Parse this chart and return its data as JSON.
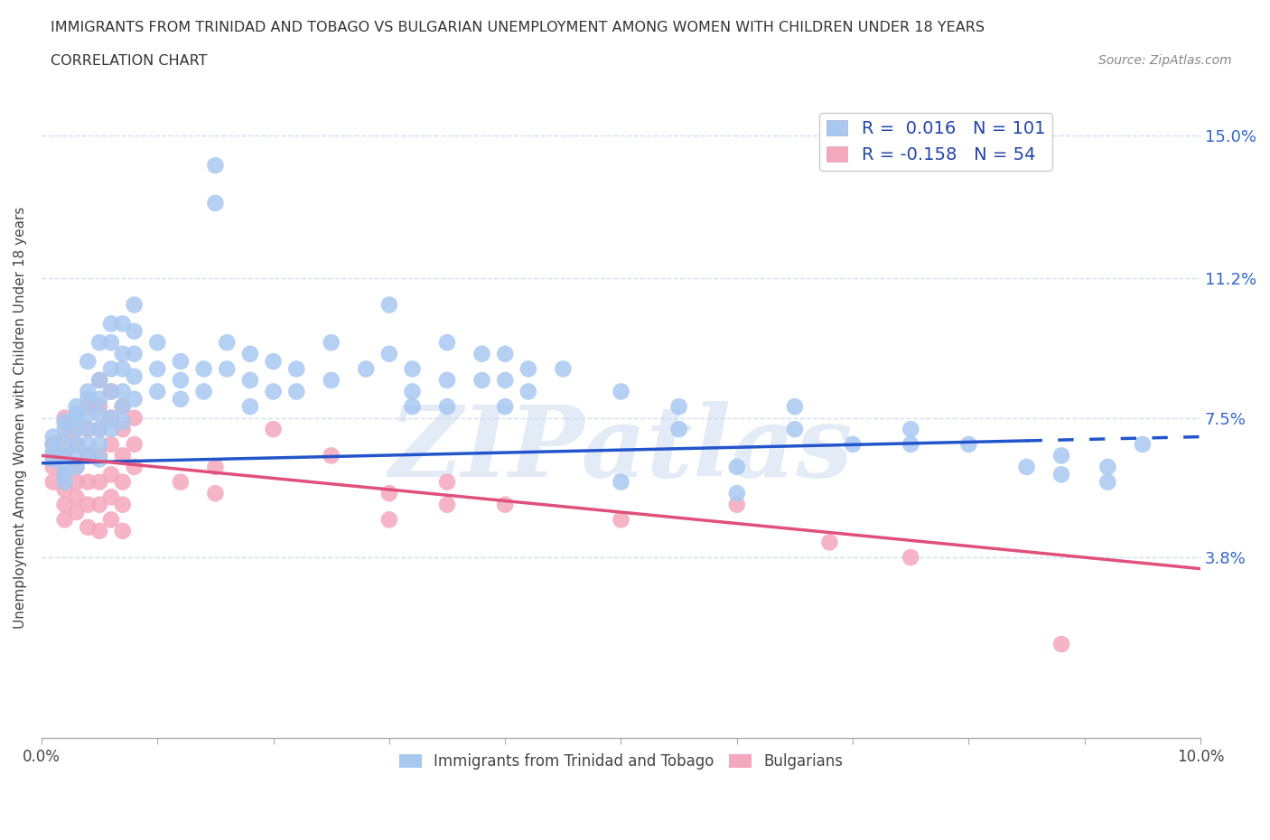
{
  "title_line1": "IMMIGRANTS FROM TRINIDAD AND TOBAGO VS BULGARIAN UNEMPLOYMENT AMONG WOMEN WITH CHILDREN UNDER 18 YEARS",
  "title_line2": "CORRELATION CHART",
  "source_text": "Source: ZipAtlas.com",
  "ylabel": "Unemployment Among Women with Children Under 18 years",
  "xlim": [
    0.0,
    0.1
  ],
  "ylim": [
    -0.01,
    0.16
  ],
  "yticks": [
    0.038,
    0.075,
    0.112,
    0.15
  ],
  "ytick_labels": [
    "3.8%",
    "7.5%",
    "11.2%",
    "15.0%"
  ],
  "blue_color": "#a8c8f0",
  "pink_color": "#f4a8be",
  "blue_line_color": "#2255cc",
  "pink_line_color": "#e0507a",
  "grid_color": "#d0dff0",
  "R_blue": 0.016,
  "N_blue": 101,
  "R_pink": -0.158,
  "N_pink": 54,
  "watermark": "ZIPatlas",
  "legend_label_blue": "Immigrants from Trinidad and Tobago",
  "legend_label_pink": "Bulgarians",
  "blue_trend": [
    0.063,
    0.07
  ],
  "pink_trend": [
    0.065,
    0.035
  ],
  "blue_scatter": [
    [
      0.001,
      0.068
    ],
    [
      0.001,
      0.064
    ],
    [
      0.001,
      0.07
    ],
    [
      0.001,
      0.066
    ],
    [
      0.002,
      0.072
    ],
    [
      0.002,
      0.068
    ],
    [
      0.002,
      0.065
    ],
    [
      0.002,
      0.062
    ],
    [
      0.002,
      0.06
    ],
    [
      0.002,
      0.058
    ],
    [
      0.002,
      0.074
    ],
    [
      0.003,
      0.076
    ],
    [
      0.003,
      0.072
    ],
    [
      0.003,
      0.068
    ],
    [
      0.003,
      0.065
    ],
    [
      0.003,
      0.062
    ],
    [
      0.003,
      0.075
    ],
    [
      0.003,
      0.078
    ],
    [
      0.004,
      0.08
    ],
    [
      0.004,
      0.076
    ],
    [
      0.004,
      0.072
    ],
    [
      0.004,
      0.068
    ],
    [
      0.004,
      0.065
    ],
    [
      0.004,
      0.082
    ],
    [
      0.004,
      0.09
    ],
    [
      0.005,
      0.085
    ],
    [
      0.005,
      0.08
    ],
    [
      0.005,
      0.076
    ],
    [
      0.005,
      0.072
    ],
    [
      0.005,
      0.068
    ],
    [
      0.005,
      0.064
    ],
    [
      0.005,
      0.095
    ],
    [
      0.006,
      0.088
    ],
    [
      0.006,
      0.082
    ],
    [
      0.006,
      0.095
    ],
    [
      0.006,
      0.1
    ],
    [
      0.006,
      0.075
    ],
    [
      0.006,
      0.072
    ],
    [
      0.007,
      0.092
    ],
    [
      0.007,
      0.088
    ],
    [
      0.007,
      0.082
    ],
    [
      0.007,
      0.078
    ],
    [
      0.007,
      0.074
    ],
    [
      0.007,
      0.1
    ],
    [
      0.008,
      0.105
    ],
    [
      0.008,
      0.098
    ],
    [
      0.008,
      0.092
    ],
    [
      0.008,
      0.086
    ],
    [
      0.008,
      0.08
    ],
    [
      0.01,
      0.095
    ],
    [
      0.01,
      0.088
    ],
    [
      0.01,
      0.082
    ],
    [
      0.012,
      0.09
    ],
    [
      0.012,
      0.085
    ],
    [
      0.012,
      0.08
    ],
    [
      0.014,
      0.088
    ],
    [
      0.014,
      0.082
    ],
    [
      0.015,
      0.142
    ],
    [
      0.015,
      0.132
    ],
    [
      0.016,
      0.095
    ],
    [
      0.016,
      0.088
    ],
    [
      0.018,
      0.092
    ],
    [
      0.018,
      0.085
    ],
    [
      0.018,
      0.078
    ],
    [
      0.02,
      0.09
    ],
    [
      0.02,
      0.082
    ],
    [
      0.022,
      0.088
    ],
    [
      0.022,
      0.082
    ],
    [
      0.025,
      0.095
    ],
    [
      0.025,
      0.085
    ],
    [
      0.028,
      0.088
    ],
    [
      0.03,
      0.105
    ],
    [
      0.03,
      0.092
    ],
    [
      0.032,
      0.088
    ],
    [
      0.032,
      0.082
    ],
    [
      0.032,
      0.078
    ],
    [
      0.035,
      0.095
    ],
    [
      0.035,
      0.085
    ],
    [
      0.035,
      0.078
    ],
    [
      0.038,
      0.092
    ],
    [
      0.038,
      0.085
    ],
    [
      0.04,
      0.092
    ],
    [
      0.04,
      0.085
    ],
    [
      0.04,
      0.078
    ],
    [
      0.042,
      0.088
    ],
    [
      0.042,
      0.082
    ],
    [
      0.045,
      0.088
    ],
    [
      0.05,
      0.082
    ],
    [
      0.05,
      0.058
    ],
    [
      0.055,
      0.078
    ],
    [
      0.055,
      0.072
    ],
    [
      0.06,
      0.062
    ],
    [
      0.06,
      0.055
    ],
    [
      0.065,
      0.078
    ],
    [
      0.065,
      0.072
    ],
    [
      0.07,
      0.068
    ],
    [
      0.075,
      0.072
    ],
    [
      0.075,
      0.068
    ],
    [
      0.08,
      0.068
    ],
    [
      0.085,
      0.062
    ],
    [
      0.088,
      0.065
    ],
    [
      0.088,
      0.06
    ],
    [
      0.092,
      0.062
    ],
    [
      0.092,
      0.058
    ],
    [
      0.095,
      0.068
    ]
  ],
  "pink_scatter": [
    [
      0.001,
      0.068
    ],
    [
      0.001,
      0.065
    ],
    [
      0.001,
      0.062
    ],
    [
      0.001,
      0.058
    ],
    [
      0.002,
      0.075
    ],
    [
      0.002,
      0.07
    ],
    [
      0.002,
      0.065
    ],
    [
      0.002,
      0.06
    ],
    [
      0.002,
      0.056
    ],
    [
      0.002,
      0.052
    ],
    [
      0.002,
      0.048
    ],
    [
      0.003,
      0.072
    ],
    [
      0.003,
      0.068
    ],
    [
      0.003,
      0.062
    ],
    [
      0.003,
      0.058
    ],
    [
      0.003,
      0.054
    ],
    [
      0.003,
      0.05
    ],
    [
      0.004,
      0.078
    ],
    [
      0.004,
      0.072
    ],
    [
      0.004,
      0.065
    ],
    [
      0.004,
      0.058
    ],
    [
      0.004,
      0.052
    ],
    [
      0.004,
      0.046
    ],
    [
      0.005,
      0.085
    ],
    [
      0.005,
      0.078
    ],
    [
      0.005,
      0.072
    ],
    [
      0.005,
      0.065
    ],
    [
      0.005,
      0.058
    ],
    [
      0.005,
      0.052
    ],
    [
      0.005,
      0.045
    ],
    [
      0.006,
      0.082
    ],
    [
      0.006,
      0.075
    ],
    [
      0.006,
      0.068
    ],
    [
      0.006,
      0.06
    ],
    [
      0.006,
      0.054
    ],
    [
      0.006,
      0.048
    ],
    [
      0.007,
      0.078
    ],
    [
      0.007,
      0.072
    ],
    [
      0.007,
      0.065
    ],
    [
      0.007,
      0.058
    ],
    [
      0.007,
      0.052
    ],
    [
      0.007,
      0.045
    ],
    [
      0.008,
      0.075
    ],
    [
      0.008,
      0.068
    ],
    [
      0.008,
      0.062
    ],
    [
      0.012,
      0.058
    ],
    [
      0.015,
      0.062
    ],
    [
      0.015,
      0.055
    ],
    [
      0.02,
      0.072
    ],
    [
      0.025,
      0.065
    ],
    [
      0.03,
      0.055
    ],
    [
      0.03,
      0.048
    ],
    [
      0.035,
      0.058
    ],
    [
      0.035,
      0.052
    ],
    [
      0.04,
      0.052
    ],
    [
      0.05,
      0.048
    ],
    [
      0.06,
      0.052
    ],
    [
      0.068,
      0.042
    ],
    [
      0.075,
      0.038
    ],
    [
      0.088,
      0.015
    ]
  ]
}
